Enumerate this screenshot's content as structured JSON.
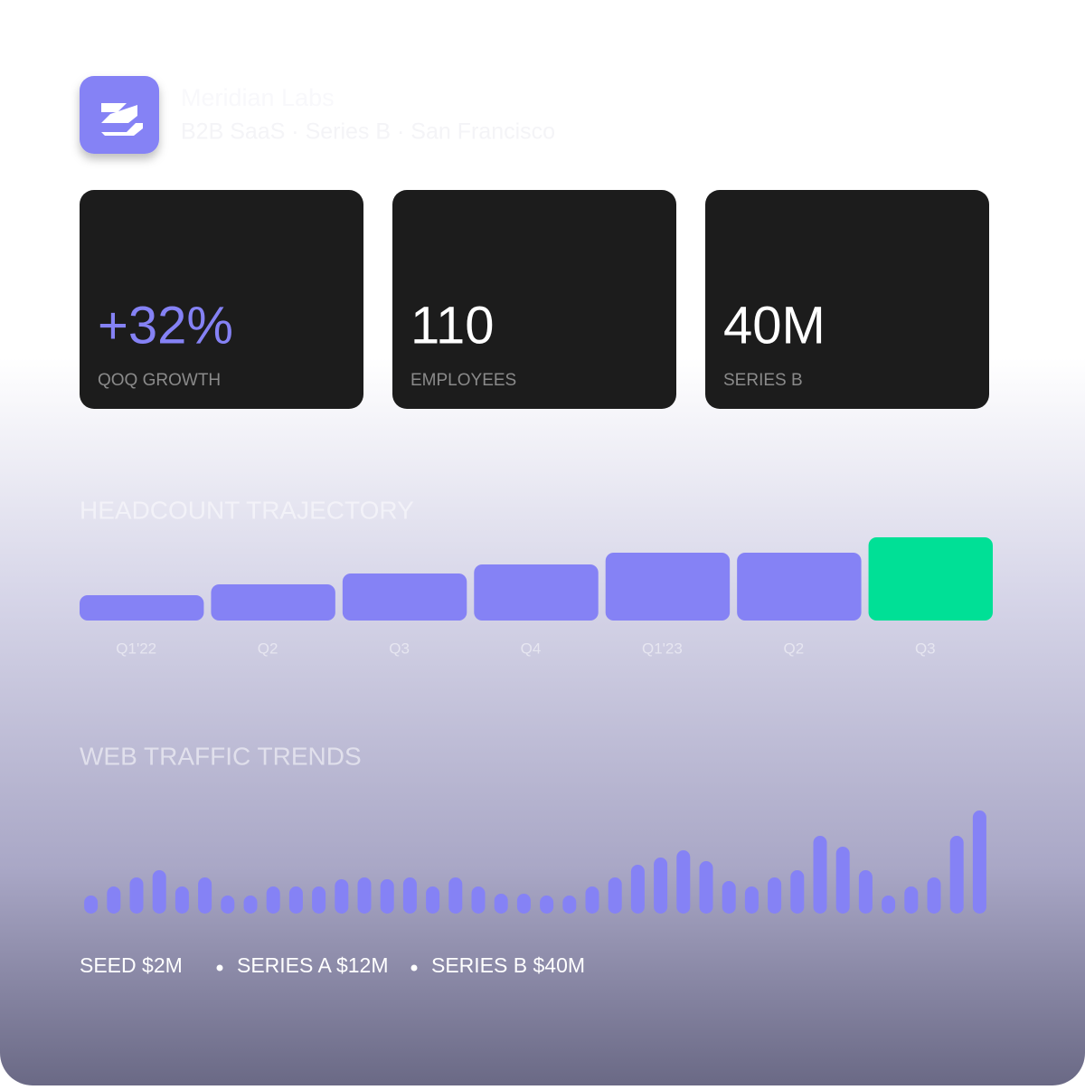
{
  "header": {
    "title": "Meridian Labs",
    "subtitle": "B2B SaaS · Series B · San Francisco"
  },
  "stats": [
    {
      "value": "+32%",
      "label": "QOQ GROWTH"
    },
    {
      "value": "110",
      "label": "EMPLOYEES"
    },
    {
      "value": "40M",
      "label": "SERIES B"
    }
  ],
  "chart_data": [
    {
      "type": "bar",
      "title": "HEADCOUNT TRAJECTORY",
      "categories": [
        "Q1'22",
        "Q2",
        "Q3",
        "Q4",
        "Q1'23",
        "Q2",
        "Q3"
      ],
      "values": [
        28,
        40,
        52,
        62,
        75,
        75,
        92
      ],
      "colors": [
        "#8582f5",
        "#8582f5",
        "#8582f5",
        "#8582f5",
        "#8582f5",
        "#8582f5",
        "#00e096"
      ]
    },
    {
      "type": "bar",
      "title": "WEB TRAFFIC TRENDS",
      "values": [
        20,
        30,
        40,
        48,
        30,
        40,
        20,
        20,
        30,
        30,
        30,
        38,
        40,
        38,
        40,
        30,
        40,
        30,
        22,
        22,
        20,
        20,
        30,
        40,
        54,
        62,
        70,
        58,
        36,
        30,
        40,
        48,
        86,
        74,
        48,
        20,
        30,
        40,
        86,
        114
      ],
      "color": "#8582f5"
    }
  ],
  "footer": [
    "SEED $2M",
    "SERIES A $12M",
    "SERIES B $40M"
  ]
}
